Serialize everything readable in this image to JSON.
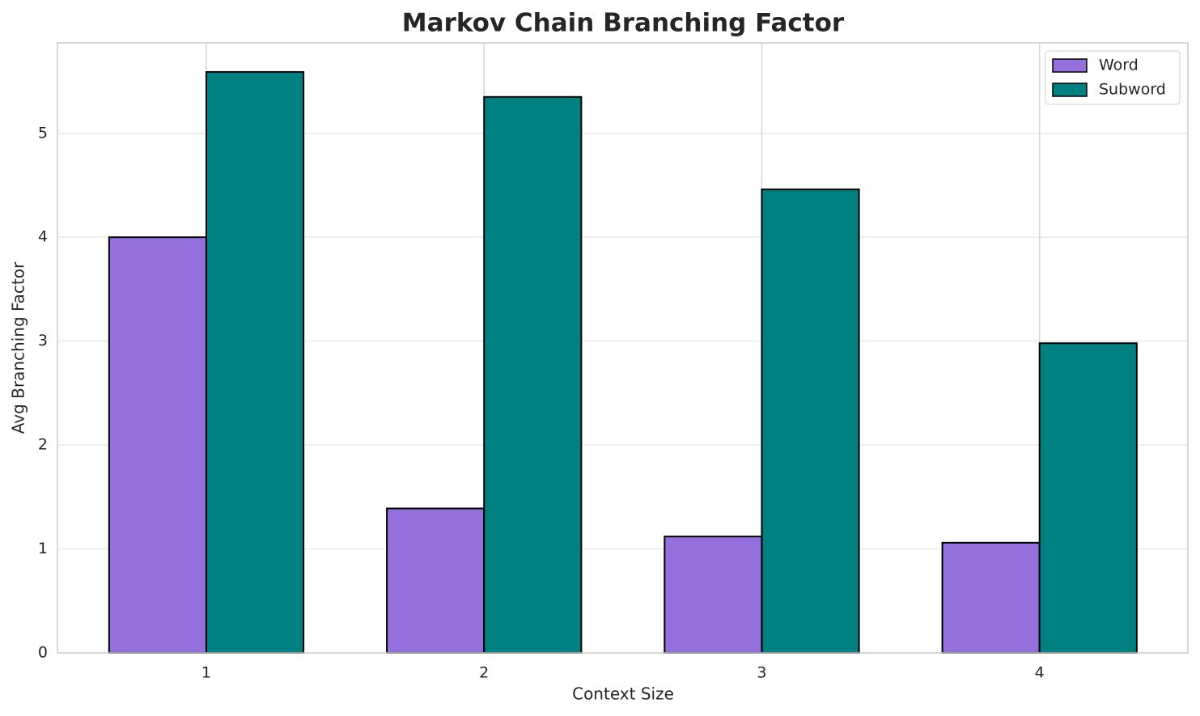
{
  "chart_data": {
    "type": "bar",
    "title": "Markov Chain Branching Factor",
    "x_label": "Context Size",
    "y_label": "Avg Branching Factor",
    "categories": [
      "1",
      "2",
      "3",
      "4"
    ],
    "series": [
      {
        "name": "Word",
        "color": "#9370db",
        "values": [
          4.0,
          1.39,
          1.12,
          1.06
        ]
      },
      {
        "name": "Subword",
        "color": "#008080",
        "values": [
          5.59,
          5.35,
          4.46,
          2.98
        ]
      }
    ],
    "ylim": [
      0,
      5.87
    ],
    "yticks": [
      0,
      1,
      2,
      3,
      4,
      5
    ],
    "grid": true,
    "legend": "upper right"
  }
}
